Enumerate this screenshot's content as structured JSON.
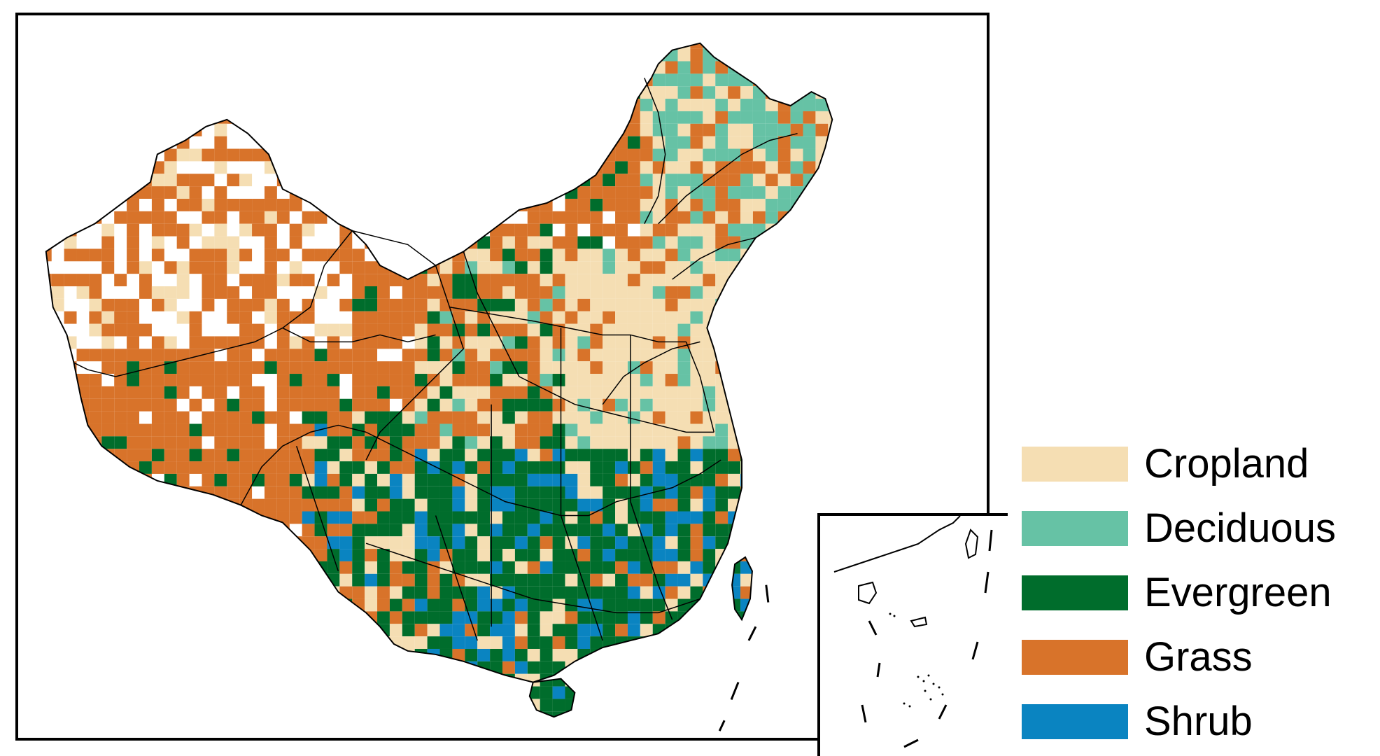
{
  "map": {
    "type": "categorical-grid",
    "legend": [
      {
        "key": "cropland",
        "label": "Cropland",
        "color": "#F5DEB3"
      },
      {
        "key": "deciduous",
        "label": "Deciduous",
        "color": "#66C2A5"
      },
      {
        "key": "evergreen",
        "label": "Evergreen",
        "color": "#006D2C"
      },
      {
        "key": "grass",
        "label": "Grass",
        "color": "#D8732A"
      },
      {
        "key": "shrub",
        "label": "Shrub",
        "color": "#0A84C1"
      }
    ],
    "legend_placement": "right"
  }
}
